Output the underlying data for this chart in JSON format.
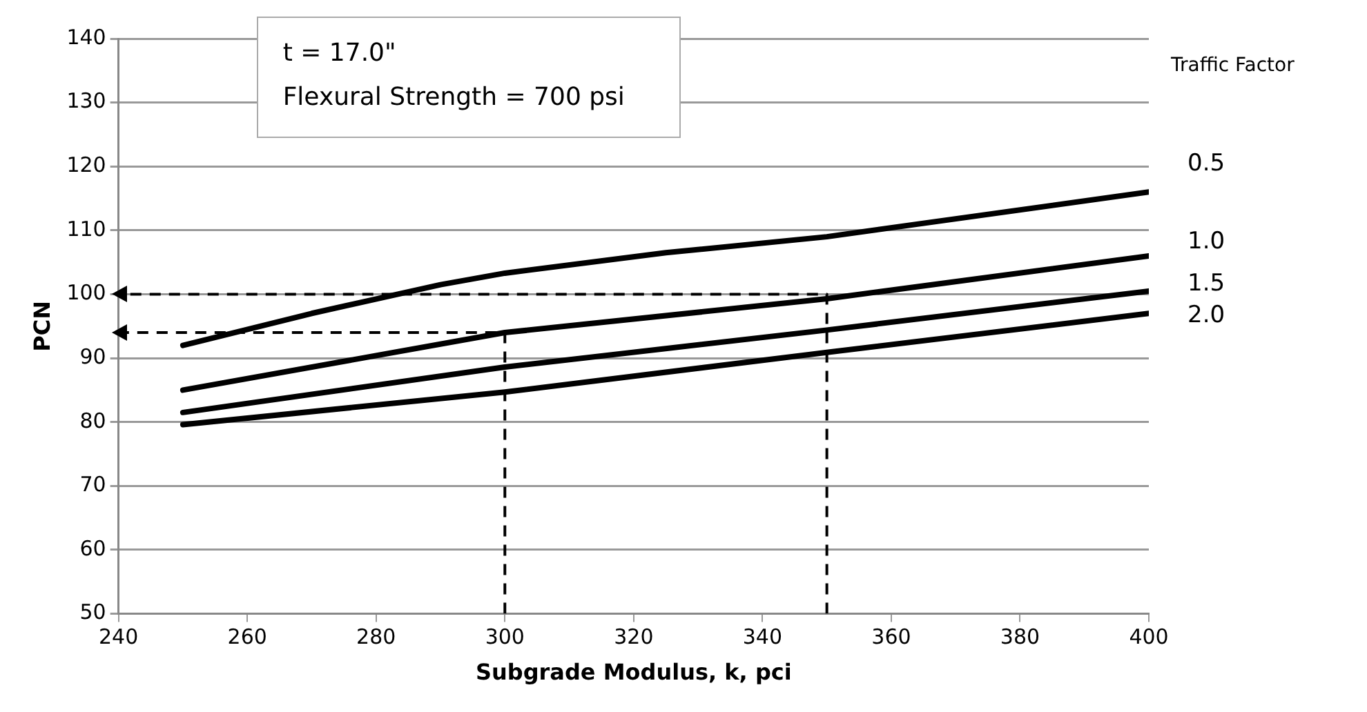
{
  "chart_data": {
    "type": "line",
    "xlabel": "Subgrade Modulus, k, pci",
    "ylabel": "PCN",
    "legend_title": "Traffic Factor",
    "annotations": [
      "t = 17.0\"",
      "Flexural Strength = 700 psi"
    ],
    "xlim": [
      240,
      400
    ],
    "xticks": [
      240,
      260,
      280,
      300,
      320,
      340,
      360,
      380,
      400
    ],
    "ylim": [
      50,
      140
    ],
    "yticks": [
      50,
      60,
      70,
      80,
      90,
      100,
      110,
      120,
      130,
      140
    ],
    "grid": "y",
    "marker": "none",
    "series": [
      {
        "name": "0.5",
        "color": "#000000",
        "x": [
          250,
          270,
          290,
          300,
          325,
          350,
          400
        ],
        "values": [
          92,
          97,
          101.5,
          103.3,
          106.5,
          109,
          116
        ]
      },
      {
        "name": "1.0",
        "color": "#000000",
        "x": [
          250,
          300,
          350,
          400
        ],
        "values": [
          85,
          94,
          99.3,
          106
        ]
      },
      {
        "name": "1.5",
        "color": "#000000",
        "x": [
          250,
          300,
          350,
          400
        ],
        "values": [
          81.5,
          88.6,
          94.4,
          100.5
        ]
      },
      {
        "name": "2.0",
        "color": "#000000",
        "x": [
          250,
          300,
          350,
          400
        ],
        "values": [
          79.6,
          84.7,
          90.9,
          97
        ]
      },
      {
        "color": "#000000",
        "line_style": "dashed",
        "x": [
          350,
          350,
          240
        ],
        "values": [
          50,
          100,
          100
        ]
      },
      {
        "color": "#000000",
        "line_style": "dashed",
        "x": [
          300,
          300,
          240
        ],
        "values": [
          50,
          94,
          94
        ]
      }
    ]
  }
}
